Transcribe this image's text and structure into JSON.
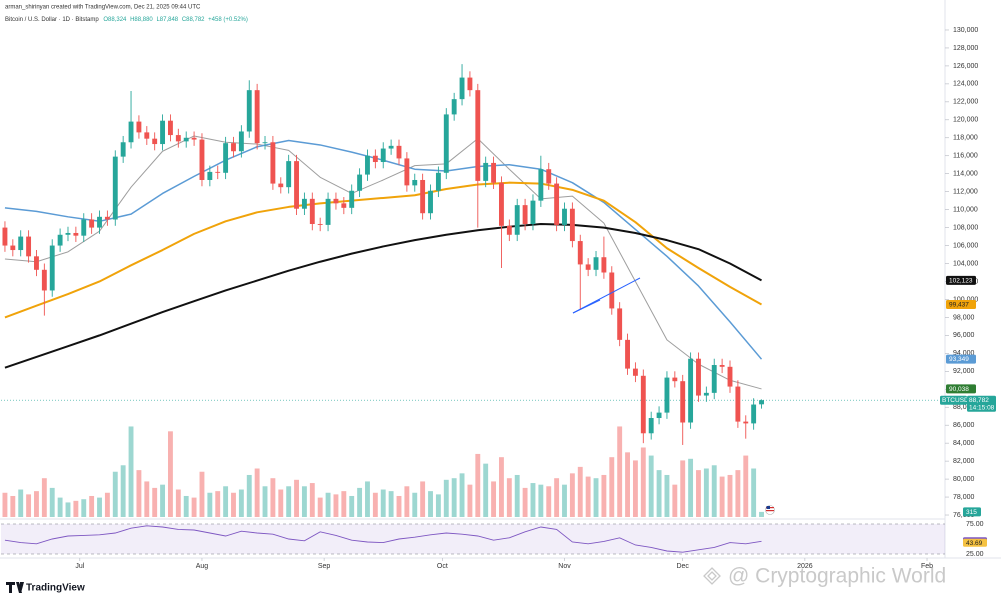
{
  "header": {
    "author_line": "arman_shirinyan created with TradingView.com, Dec 21, 2025 09:44 UTC",
    "symbol": "Bitcoin / U.S. Dollar · 1D · Bitstamp",
    "open": "O88,324",
    "high": "H88,880",
    "low": "L87,848",
    "close": "C88,782",
    "change": "+458 (+0.52%)"
  },
  "footer": {
    "logo": "TradingView",
    "watermark": "@ Cryptographic World"
  },
  "chart_data": {
    "type": "candlestick",
    "up_color": "#26a69a",
    "down_color": "#ef5350",
    "open": [
      108000,
      106000,
      105500,
      107000,
      104800,
      103300,
      101000,
      106000,
      107200,
      107400,
      107100,
      108900,
      108000,
      109200,
      108900,
      115900,
      117500,
      119800,
      118600,
      117900,
      117300,
      119900,
      118300,
      117600,
      118000,
      117800,
      113300,
      114200,
      114100,
      117400,
      116500,
      118700,
      123300,
      117400,
      117500,
      112900,
      112500,
      115400,
      110100,
      111200,
      108400,
      108300,
      111200,
      110700,
      110200,
      112100,
      113900,
      116000,
      115300,
      116800,
      117100,
      115700,
      112700,
      113300,
      109600,
      112100,
      114100,
      120600,
      122300,
      124700,
      123300,
      113200,
      115200,
      113000,
      108200,
      107200,
      110500,
      108400,
      111000,
      114500,
      112900,
      108300,
      110100,
      106500,
      103900,
      103300,
      104700,
      103000,
      99000,
      95500,
      92300,
      91500,
      85100,
      86800,
      87400,
      91300,
      90900,
      86300,
      93400,
      89300,
      89600,
      92700,
      92500,
      90300,
      86400,
      86200,
      88324
    ],
    "high": [
      108700,
      106700,
      107700,
      107700,
      105500,
      104000,
      106700,
      107900,
      108100,
      108100,
      109600,
      109600,
      109900,
      109900,
      116600,
      118200,
      123200,
      120500,
      119300,
      118600,
      120600,
      120600,
      119000,
      118700,
      118700,
      118500,
      114900,
      114900,
      118100,
      118100,
      119400,
      124400,
      124000,
      118200,
      118200,
      113600,
      116100,
      116100,
      111900,
      111900,
      109100,
      111900,
      111900,
      111400,
      112800,
      114600,
      116700,
      116700,
      117500,
      117800,
      117800,
      116400,
      114000,
      114000,
      112800,
      114800,
      121300,
      123000,
      126200,
      125400,
      124000,
      115900,
      115900,
      113700,
      108900,
      111200,
      111200,
      111700,
      116000,
      115200,
      113600,
      110800,
      110800,
      107200,
      104600,
      105400,
      107000,
      103700,
      99700,
      96200,
      93000,
      92200,
      87500,
      88100,
      92000,
      92000,
      91600,
      94100,
      94100,
      90300,
      93400,
      93400,
      93200,
      91000,
      87100,
      89000,
      88880
    ],
    "low": [
      105300,
      104800,
      104800,
      104100,
      102600,
      98200,
      100300,
      105300,
      106500,
      106400,
      106400,
      107300,
      107300,
      108200,
      108200,
      115200,
      116800,
      117900,
      117200,
      116600,
      116600,
      117600,
      116900,
      116900,
      117100,
      112600,
      112600,
      113400,
      113400,
      115800,
      115800,
      118000,
      116700,
      116700,
      112200,
      111800,
      111800,
      109400,
      109400,
      107700,
      107600,
      107600,
      110000,
      109500,
      109500,
      111400,
      113200,
      114600,
      114600,
      116100,
      115000,
      112000,
      112000,
      108900,
      108900,
      111400,
      113400,
      119900,
      121600,
      122600,
      108000,
      112500,
      112300,
      103500,
      106500,
      106500,
      107700,
      107700,
      110300,
      112200,
      107600,
      107600,
      105800,
      98900,
      102600,
      102600,
      102300,
      98300,
      94800,
      91600,
      90800,
      84000,
      84400,
      86100,
      86700,
      90200,
      83800,
      85600,
      88600,
      88600,
      88900,
      91800,
      89600,
      85700,
      84500,
      85500,
      87848
    ],
    "close": [
      106000,
      105500,
      107000,
      104800,
      103300,
      101000,
      106000,
      107200,
      107400,
      107100,
      108900,
      108000,
      109200,
      108900,
      115900,
      117500,
      119800,
      118600,
      117900,
      117300,
      119900,
      118300,
      117600,
      118000,
      117800,
      113300,
      114200,
      114100,
      117400,
      116500,
      118700,
      123300,
      117400,
      117500,
      112900,
      112500,
      115400,
      110100,
      111200,
      108400,
      108300,
      111200,
      110700,
      110200,
      112100,
      113900,
      116000,
      115300,
      116800,
      117100,
      115700,
      112700,
      113300,
      109600,
      112100,
      114100,
      120600,
      122300,
      124700,
      123300,
      113200,
      115200,
      113000,
      108200,
      107200,
      110500,
      108400,
      111000,
      114500,
      112900,
      108300,
      110100,
      106500,
      103900,
      103300,
      104700,
      103000,
      99000,
      95500,
      92300,
      91500,
      85100,
      86800,
      87400,
      91300,
      90900,
      86300,
      93400,
      89300,
      89600,
      92700,
      92500,
      90300,
      86400,
      86200,
      88300,
      88782
    ],
    "volume": [
      1500,
      1300,
      1700,
      1400,
      1600,
      2400,
      1800,
      1200,
      900,
      1000,
      1100,
      1300,
      1200,
      1500,
      2800,
      3200,
      5600,
      2900,
      2200,
      1800,
      2000,
      5300,
      1700,
      1300,
      1200,
      2800,
      1500,
      1600,
      1900,
      1500,
      1700,
      2600,
      3000,
      1900,
      2400,
      1700,
      1900,
      2300,
      1900,
      2100,
      1200,
      1500,
      1400,
      1600,
      1300,
      1800,
      2200,
      1500,
      1700,
      1600,
      1300,
      1900,
      1500,
      2200,
      1600,
      1400,
      2300,
      2400,
      2700,
      2000,
      3900,
      3300,
      2200,
      3700,
      2400,
      2600,
      1800,
      2100,
      2000,
      1900,
      2400,
      2000,
      2700,
      3100,
      2500,
      2400,
      2600,
      3700,
      5600,
      4000,
      3500,
      4300,
      3800,
      2900,
      2600,
      2000,
      3500,
      3600,
      2900,
      3000,
      3200,
      2500,
      2600,
      2900,
      3800,
      3000,
      315
    ],
    "volume_lim": [
      0,
      6000
    ],
    "xlim": [
      -0.5,
      118.9
    ],
    "xticks": [
      {
        "value": 9.5,
        "label": "Jul"
      },
      {
        "value": 25,
        "label": "Aug"
      },
      {
        "value": 40.5,
        "label": "Sep"
      },
      {
        "value": 55.5,
        "label": "Oct"
      },
      {
        "value": 71,
        "label": "Nov"
      },
      {
        "value": 86,
        "label": "Dec"
      },
      {
        "value": 101.5,
        "label": "2026"
      },
      {
        "value": 117,
        "label": "Feb"
      }
    ],
    "ylim": [
      75000,
      131000
    ],
    "yticks": [
      {
        "value": 76000,
        "label": "76,000"
      },
      {
        "value": 78000,
        "label": "78,000"
      },
      {
        "value": 80000,
        "label": "80,000"
      },
      {
        "value": 82000,
        "label": "82,000"
      },
      {
        "value": 84000,
        "label": "84,000"
      },
      {
        "value": 86000,
        "label": "86,000"
      },
      {
        "value": 88000,
        "label": "88,000"
      },
      {
        "value": 90000,
        "label": "90,000"
      },
      {
        "value": 92000,
        "label": "92,000"
      },
      {
        "value": 94000,
        "label": "94,000"
      },
      {
        "value": 96000,
        "label": "96,000"
      },
      {
        "value": 98000,
        "label": "98,000"
      },
      {
        "value": 100000,
        "label": "100,000"
      },
      {
        "value": 102000,
        "label": "102,000"
      },
      {
        "value": 104000,
        "label": "104,000"
      },
      {
        "value": 106000,
        "label": "106,000"
      },
      {
        "value": 108000,
        "label": "108,000"
      },
      {
        "value": 110000,
        "label": "110,000"
      },
      {
        "value": 112000,
        "label": "112,000"
      },
      {
        "value": 114000,
        "label": "114,000"
      },
      {
        "value": 116000,
        "label": "116,000"
      },
      {
        "value": 118000,
        "label": "118,000"
      },
      {
        "value": 120000,
        "label": "120,000"
      },
      {
        "value": 122000,
        "label": "122,000"
      },
      {
        "value": 124000,
        "label": "124,000"
      },
      {
        "value": 126000,
        "label": "126,000"
      },
      {
        "value": 128000,
        "label": "128,000"
      },
      {
        "value": 130000,
        "label": "130,000"
      }
    ],
    "moving_averages": [
      {
        "color": "#9e9e9e",
        "width": 1,
        "x": [
          0,
          4,
          8,
          12,
          16,
          20,
          24,
          28,
          32,
          36,
          40,
          44,
          48,
          52,
          56,
          60,
          64,
          68,
          72,
          76,
          80,
          84,
          88,
          92,
          96
        ],
        "values": [
          104500,
          104200,
          105300,
          107600,
          112500,
          116500,
          118200,
          117500,
          117300,
          116600,
          113600,
          111800,
          113300,
          114900,
          115100,
          117900,
          114500,
          111200,
          111500,
          108500,
          102000,
          95500,
          92800,
          91000,
          90038
        ]
      },
      {
        "color": "#5b9bd5",
        "width": 1.5,
        "x": [
          0,
          4,
          8,
          12,
          16,
          20,
          24,
          28,
          32,
          36,
          40,
          44,
          48,
          52,
          56,
          60,
          64,
          68,
          72,
          76,
          80,
          84,
          88,
          92,
          96
        ],
        "values": [
          110200,
          109800,
          109200,
          108700,
          109500,
          111800,
          113700,
          115500,
          117000,
          117700,
          117200,
          116400,
          115500,
          114500,
          114300,
          114800,
          115000,
          114500,
          113000,
          110800,
          107800,
          104800,
          101500,
          97500,
          93349
        ]
      },
      {
        "color": "#f0a30a",
        "width": 2,
        "x": [
          0,
          4,
          8,
          12,
          16,
          20,
          24,
          28,
          32,
          36,
          40,
          44,
          48,
          52,
          56,
          60,
          64,
          68,
          72,
          76,
          80,
          84,
          88,
          92,
          96
        ],
        "values": [
          98000,
          99300,
          100600,
          102000,
          103800,
          105500,
          107300,
          108700,
          109700,
          110300,
          110700,
          111000,
          111300,
          111600,
          112300,
          112800,
          113000,
          112900,
          112200,
          111000,
          108600,
          105700,
          103500,
          101400,
          99437
        ]
      },
      {
        "color": "#111111",
        "width": 2,
        "x": [
          0,
          4,
          8,
          12,
          16,
          20,
          24,
          28,
          32,
          36,
          40,
          44,
          48,
          52,
          56,
          60,
          64,
          68,
          72,
          76,
          80,
          84,
          88,
          92,
          96
        ],
        "values": [
          92400,
          93600,
          94800,
          96000,
          97300,
          98600,
          99800,
          101000,
          102100,
          103200,
          104200,
          105100,
          105900,
          106600,
          107200,
          107700,
          108100,
          108400,
          108300,
          108000,
          107400,
          106600,
          105600,
          104000,
          102123
        ]
      }
    ],
    "badges": [
      {
        "value": 102123,
        "label": "102,123",
        "color": "#111111",
        "text_color": "#ffffff"
      },
      {
        "value": 99437,
        "label": "99,437",
        "color": "#f0a30a",
        "text_color": "#222222"
      },
      {
        "value": 93349,
        "label": "93,349",
        "color": "#5b9bd5",
        "text_color": "#ffffff"
      },
      {
        "value": 90038,
        "label": "90,038",
        "color": "#2e7d32",
        "text_color": "#ffffff"
      }
    ],
    "last_price": {
      "symbol": "BTCUSD",
      "value": 88782,
      "label": "88,782",
      "countdown": "14:15:08",
      "color": "#26a69a"
    },
    "volume_badge": {
      "value": 315,
      "label": "315",
      "color": "#26a69a"
    },
    "rsi": {
      "color": "#7e57c2",
      "x": [
        0,
        2,
        4,
        6,
        8,
        10,
        12,
        14,
        16,
        18,
        20,
        22,
        24,
        26,
        28,
        30,
        32,
        34,
        36,
        38,
        40,
        42,
        44,
        46,
        48,
        50,
        52,
        54,
        56,
        58,
        60,
        62,
        64,
        66,
        68,
        70,
        72,
        74,
        76,
        78,
        80,
        82,
        84,
        86,
        88,
        90,
        92,
        94,
        96
      ],
      "values": [
        48,
        44,
        42,
        50,
        55,
        56,
        57,
        60,
        68,
        72,
        70,
        66,
        65,
        60,
        55,
        63,
        60,
        58,
        50,
        47,
        62,
        56,
        48,
        45,
        44,
        50,
        53,
        57,
        60,
        58,
        55,
        48,
        52,
        62,
        70,
        66,
        45,
        42,
        46,
        52,
        40,
        36,
        30,
        28,
        32,
        36,
        44,
        42,
        46.2
      ],
      "lim": [
        25,
        75
      ],
      "ticks": [
        {
          "value": 75,
          "label": "75.00"
        },
        {
          "value": 25,
          "label": "25.00"
        }
      ],
      "badges": [
        {
          "value": 46.2,
          "label": "46.20",
          "color": "#7e57c2",
          "text_color": "#ffffff"
        },
        {
          "value": 43.69,
          "label": "43.69",
          "color": "#f5c242",
          "text_color": "#222222"
        }
      ]
    }
  }
}
